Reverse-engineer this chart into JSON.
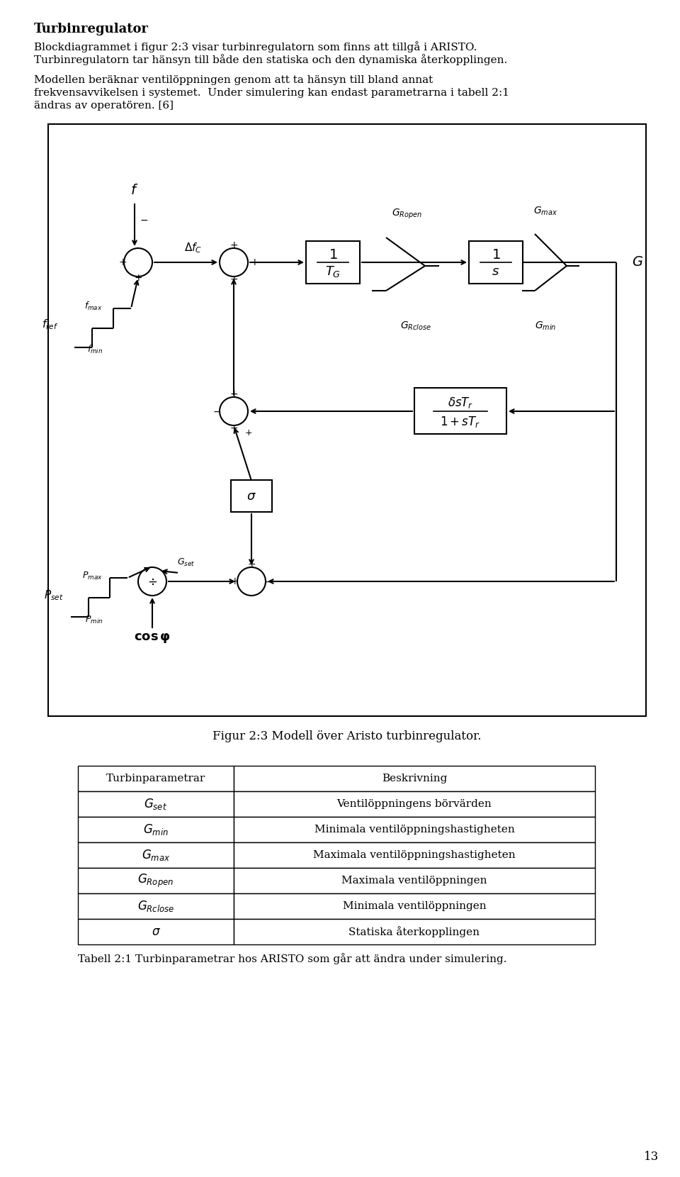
{
  "title": "Turbinregulator",
  "para1_line1": "Blockdiagrammet i figur 2:3 visar turbinregulatorn som finns att tillgå i ARISTO.",
  "para1_line2": "Turbinregulatorn tar hänsyn till både den statiska och den dynamiska återkopplingen.",
  "para2_line1": "Modellen beräknar ventilöppningen genom att ta hänsyn till bland annat",
  "para2_line2": "frekvensavvikelsen i systemet.  Under simulering kan endast parametrarna i tabell 2:1",
  "para2_line3": "ändras av operatören. [6]",
  "fig_caption": "Figur 2:3 Modell över Aristo turbinregulator.",
  "table_caption": "Tabell 2:1 Turbinparametrar hos ARISTO som går att ändra under simulering.",
  "page_number": "13",
  "table_col1_header": "Turbinparametrar",
  "table_col2_header": "Beskrivning",
  "table_rows": [
    [
      "$G_{set}$",
      "Ventilöppningens börvärden"
    ],
    [
      "$G_{min}$",
      "Minimala ventilöppningshastigheten"
    ],
    [
      "$G_{max}$",
      "Maximala ventilöppningshastigheten"
    ],
    [
      "$G_{Ropen}$",
      "Maximala ventilöppningen"
    ],
    [
      "$G_{Rclose}$",
      "Minimala ventilöppningen"
    ],
    [
      "$\\sigma$",
      "Statiska återkopplingen"
    ]
  ],
  "bg_color": "#ffffff"
}
